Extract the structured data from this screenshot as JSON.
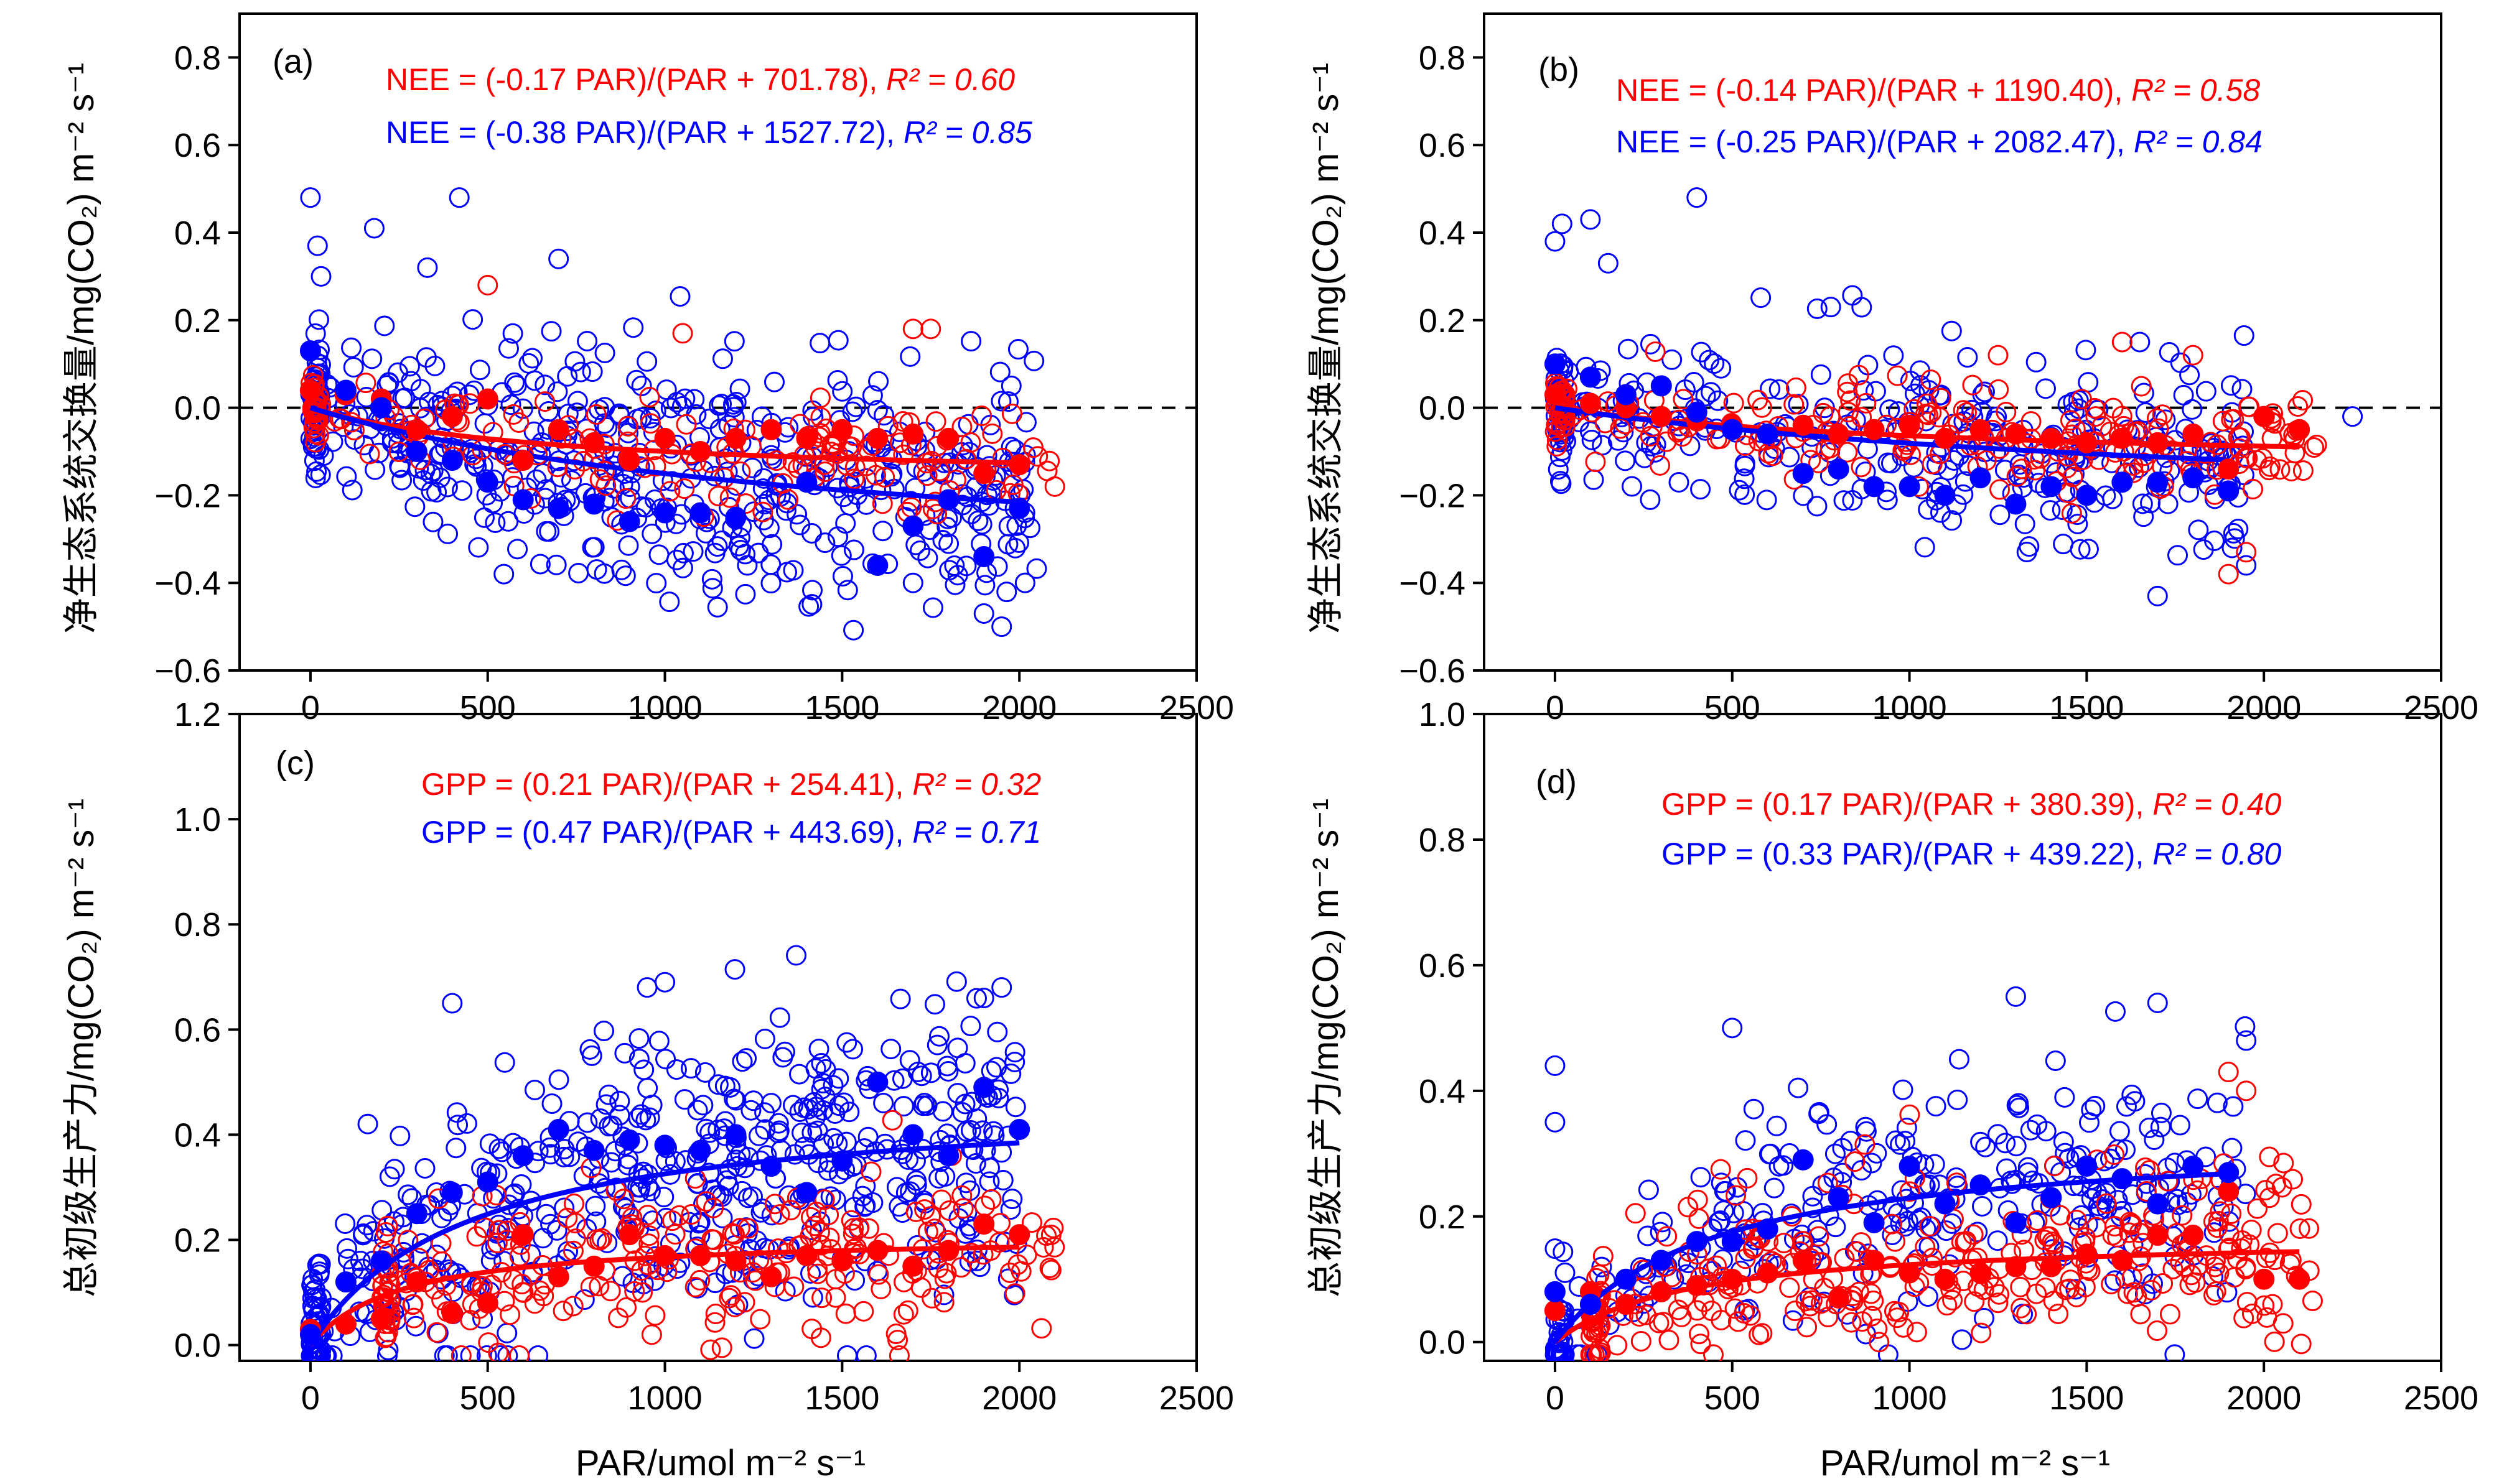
{
  "colors": {
    "red": "#ff0000",
    "blue": "#0000ff",
    "axis": "#000000"
  },
  "xlabel": "PAR/umol m⁻² s⁻¹",
  "chart_data": [
    {
      "type": "scatter",
      "panel": "(a)",
      "ylabel": "净生态系统交换量/mg(CO₂) m⁻² s⁻¹",
      "xlim": [
        -200,
        2500
      ],
      "ylim": [
        -0.6,
        0.9
      ],
      "xticks": [
        0,
        500,
        1000,
        1500,
        2000,
        2500
      ],
      "yticks": [
        -0.6,
        -0.4,
        -0.2,
        0.0,
        0.2,
        0.4,
        0.6,
        0.8
      ],
      "ytick_labels": [
        "−0.6",
        "−0.4",
        "−0.2",
        "0.0",
        "0.2",
        "0.4",
        "0.6",
        "0.8"
      ],
      "zero_line": true,
      "equations": [
        {
          "color": "red",
          "text": "NEE = (-0.17 PAR)/(PAR + 701.78), ",
          "r2": "R² = 0.60"
        },
        {
          "color": "blue",
          "text": "NEE = (-0.38 PAR)/(PAR + 1527.72), ",
          "r2": "R² = 0.85"
        }
      ],
      "fits": [
        {
          "color": "red",
          "a": -0.17,
          "b": 701.78,
          "c": 0.0,
          "xmax": 2000
        },
        {
          "color": "blue",
          "a": -0.38,
          "b": 1527.72,
          "c": 0.0,
          "xmax": 2000
        }
      ],
      "means": {
        "red": [
          [
            0,
            0.04
          ],
          [
            100,
            0.03
          ],
          [
            200,
            0.02
          ],
          [
            300,
            -0.05
          ],
          [
            400,
            -0.02
          ],
          [
            500,
            0.02
          ],
          [
            600,
            -0.12
          ],
          [
            700,
            -0.05
          ],
          [
            800,
            -0.08
          ],
          [
            900,
            -0.12
          ],
          [
            1000,
            -0.07
          ],
          [
            1100,
            -0.1
          ],
          [
            1200,
            -0.07
          ],
          [
            1300,
            -0.05
          ],
          [
            1400,
            -0.07
          ],
          [
            1500,
            -0.05
          ],
          [
            1600,
            -0.07
          ],
          [
            1700,
            -0.06
          ],
          [
            1800,
            -0.07
          ],
          [
            1900,
            -0.15
          ],
          [
            2000,
            -0.13
          ]
        ],
        "blue": [
          [
            0,
            0.13
          ],
          [
            100,
            0.04
          ],
          [
            200,
            0.0
          ],
          [
            300,
            -0.1
          ],
          [
            400,
            -0.12
          ],
          [
            500,
            -0.17
          ],
          [
            600,
            -0.21
          ],
          [
            700,
            -0.23
          ],
          [
            800,
            -0.22
          ],
          [
            900,
            -0.26
          ],
          [
            1000,
            -0.24
          ],
          [
            1100,
            -0.24
          ],
          [
            1200,
            -0.25
          ],
          [
            1400,
            -0.17
          ],
          [
            1600,
            -0.36
          ],
          [
            1700,
            -0.27
          ],
          [
            1800,
            -0.21
          ],
          [
            1900,
            -0.34
          ],
          [
            2000,
            -0.23
          ]
        ]
      },
      "scatter": {
        "blue": {
          "xrange": [
            0,
            2050
          ],
          "spread": 0.14,
          "n": 520,
          "extra": [
            [
              0,
              0.48
            ],
            [
              20,
              0.37
            ],
            [
              30,
              0.3
            ],
            [
              180,
              0.41
            ],
            [
              330,
              0.32
            ],
            [
              420,
              0.48
            ],
            [
              700,
              0.34
            ],
            [
              1700,
              -0.4
            ],
            [
              1900,
              -0.47
            ],
            [
              1950,
              -0.5
            ]
          ]
        },
        "red": {
          "xrange": [
            0,
            2100
          ],
          "spread": 0.06,
          "n": 180,
          "extra": [
            [
              500,
              0.28
            ],
            [
              1050,
              0.17
            ],
            [
              1700,
              0.18
            ],
            [
              1750,
              0.18
            ],
            [
              2100,
              -0.18
            ]
          ]
        }
      }
    },
    {
      "type": "scatter",
      "panel": "(b)",
      "ylabel": "净生态系统交换量/mg(CO₂) m⁻² s⁻¹",
      "xlim": [
        -200,
        2500
      ],
      "ylim": [
        -0.6,
        0.9
      ],
      "xticks": [
        0,
        500,
        1000,
        1500,
        2000,
        2500
      ],
      "yticks": [
        -0.6,
        -0.4,
        -0.2,
        0.0,
        0.2,
        0.4,
        0.6,
        0.8
      ],
      "ytick_labels": [
        "−0.6",
        "−0.4",
        "−0.2",
        "0.0",
        "0.2",
        "0.4",
        "0.6",
        "0.8"
      ],
      "zero_line": true,
      "equations": [
        {
          "color": "red",
          "text": "NEE = (-0.14 PAR)/(PAR + 1190.40), ",
          "r2": "R² = 0.58"
        },
        {
          "color": "blue",
          "text": "NEE = (-0.25 PAR)/(PAR + 2082.47), ",
          "r2": "R² = 0.84"
        }
      ],
      "fits": [
        {
          "color": "red",
          "a": -0.14,
          "b": 1190.4,
          "c": 0.0,
          "xmax": 2100
        },
        {
          "color": "blue",
          "a": -0.25,
          "b": 2082.47,
          "c": 0.0,
          "xmax": 1900
        }
      ],
      "means": {
        "red": [
          [
            0,
            0.03
          ],
          [
            100,
            0.01
          ],
          [
            200,
            0.0
          ],
          [
            300,
            -0.02
          ],
          [
            400,
            -0.03
          ],
          [
            500,
            -0.04
          ],
          [
            600,
            -0.06
          ],
          [
            700,
            -0.04
          ],
          [
            800,
            -0.06
          ],
          [
            900,
            -0.05
          ],
          [
            1000,
            -0.04
          ],
          [
            1100,
            -0.07
          ],
          [
            1200,
            -0.05
          ],
          [
            1300,
            -0.06
          ],
          [
            1400,
            -0.07
          ],
          [
            1500,
            -0.08
          ],
          [
            1600,
            -0.07
          ],
          [
            1700,
            -0.08
          ],
          [
            1800,
            -0.06
          ],
          [
            1900,
            -0.14
          ],
          [
            2000,
            -0.02
          ],
          [
            2100,
            -0.05
          ]
        ],
        "blue": [
          [
            0,
            0.1
          ],
          [
            100,
            0.07
          ],
          [
            200,
            0.03
          ],
          [
            300,
            0.05
          ],
          [
            400,
            -0.01
          ],
          [
            500,
            -0.05
          ],
          [
            600,
            -0.06
          ],
          [
            700,
            -0.15
          ],
          [
            800,
            -0.14
          ],
          [
            900,
            -0.18
          ],
          [
            1000,
            -0.18
          ],
          [
            1100,
            -0.2
          ],
          [
            1200,
            -0.16
          ],
          [
            1300,
            -0.22
          ],
          [
            1400,
            -0.18
          ],
          [
            1500,
            -0.2
          ],
          [
            1600,
            -0.17
          ],
          [
            1700,
            -0.17
          ],
          [
            1800,
            -0.16
          ],
          [
            1900,
            -0.19
          ]
        ]
      },
      "scatter": {
        "blue": {
          "xrange": [
            0,
            1950
          ],
          "spread": 0.11,
          "n": 330,
          "extra": [
            [
              0,
              0.38
            ],
            [
              20,
              0.42
            ],
            [
              100,
              0.43
            ],
            [
              400,
              0.48
            ],
            [
              150,
              0.33
            ],
            [
              1650,
              0.15
            ],
            [
              1700,
              -0.43
            ],
            [
              1950,
              -0.36
            ],
            [
              2250,
              -0.02
            ]
          ]
        },
        "red": {
          "xrange": [
            0,
            2150
          ],
          "spread": 0.06,
          "n": 230,
          "extra": [
            [
              1250,
              0.12
            ],
            [
              1600,
              0.15
            ],
            [
              1800,
              0.12
            ],
            [
              1900,
              -0.38
            ],
            [
              1950,
              -0.33
            ]
          ]
        }
      }
    },
    {
      "type": "scatter",
      "panel": "(c)",
      "ylabel": "总初级生产力/mg(CO₂) m⁻² s⁻¹",
      "xlim": [
        -200,
        2500
      ],
      "ylim": [
        -0.03,
        1.2
      ],
      "xticks": [
        0,
        500,
        1000,
        1500,
        2000,
        2500
      ],
      "yticks": [
        0.0,
        0.2,
        0.4,
        0.6,
        0.8,
        1.0,
        1.2
      ],
      "ytick_labels": [
        "0.0",
        "0.2",
        "0.4",
        "0.6",
        "0.8",
        "1.0",
        "1.2"
      ],
      "zero_line": false,
      "equations": [
        {
          "color": "red",
          "text": "GPP = (0.21 PAR)/(PAR + 254.41), ",
          "r2": "R² = 0.32"
        },
        {
          "color": "blue",
          "text": "GPP = (0.47 PAR)/(PAR + 443.69), ",
          "r2": "R² = 0.71"
        }
      ],
      "fits": [
        {
          "color": "red",
          "a": 0.21,
          "b": 254.41,
          "c": 0.0,
          "xmax": 2000
        },
        {
          "color": "blue",
          "a": 0.47,
          "b": 443.69,
          "c": 0.0,
          "xmax": 2000
        }
      ],
      "means": {
        "red": [
          [
            0,
            0.03
          ],
          [
            100,
            0.04
          ],
          [
            200,
            0.05
          ],
          [
            300,
            0.12
          ],
          [
            400,
            0.06
          ],
          [
            500,
            0.08
          ],
          [
            600,
            0.21
          ],
          [
            700,
            0.13
          ],
          [
            800,
            0.15
          ],
          [
            900,
            0.21
          ],
          [
            1000,
            0.17
          ],
          [
            1100,
            0.17
          ],
          [
            1200,
            0.16
          ],
          [
            1300,
            0.13
          ],
          [
            1400,
            0.17
          ],
          [
            1500,
            0.16
          ],
          [
            1600,
            0.18
          ],
          [
            1700,
            0.15
          ],
          [
            1800,
            0.18
          ],
          [
            1900,
            0.23
          ],
          [
            2000,
            0.21
          ]
        ],
        "blue": [
          [
            0,
            0.02
          ],
          [
            100,
            0.12
          ],
          [
            200,
            0.16
          ],
          [
            300,
            0.25
          ],
          [
            400,
            0.29
          ],
          [
            500,
            0.31
          ],
          [
            600,
            0.36
          ],
          [
            700,
            0.41
          ],
          [
            800,
            0.37
          ],
          [
            900,
            0.39
          ],
          [
            1000,
            0.38
          ],
          [
            1100,
            0.37
          ],
          [
            1200,
            0.4
          ],
          [
            1300,
            0.34
          ],
          [
            1400,
            0.29
          ],
          [
            1500,
            0.35
          ],
          [
            1600,
            0.5
          ],
          [
            1700,
            0.4
          ],
          [
            1800,
            0.36
          ],
          [
            1900,
            0.49
          ],
          [
            2000,
            0.41
          ]
        ]
      },
      "scatter": {
        "blue": {
          "xrange": [
            0,
            2000
          ],
          "spread": 0.14,
          "n": 560,
          "extra": [
            [
              950,
              0.68
            ],
            [
              1000,
              0.69
            ],
            [
              1950,
              0.68
            ],
            [
              1900,
              0.66
            ],
            [
              400,
              0.65
            ]
          ]
        },
        "red": {
          "xrange": [
            200,
            2100
          ],
          "spread": 0.08,
          "n": 260,
          "extra": []
        }
      }
    },
    {
      "type": "scatter",
      "panel": "(d)",
      "ylabel": "总初级生产力/mg(CO₂) m⁻² s⁻¹",
      "xlim": [
        -200,
        2500
      ],
      "ylim": [
        -0.03,
        1.0
      ],
      "xticks": [
        0,
        500,
        1000,
        1500,
        2000,
        2500
      ],
      "yticks": [
        0.0,
        0.2,
        0.4,
        0.6,
        0.8,
        1.0
      ],
      "ytick_labels": [
        "0.0",
        "0.2",
        "0.4",
        "0.6",
        "0.8",
        "1.0"
      ],
      "zero_line": false,
      "equations": [
        {
          "color": "red",
          "text": "GPP = (0.17 PAR)/(PAR + 380.39), ",
          "r2": "R² = 0.40"
        },
        {
          "color": "blue",
          "text": "GPP = (0.33 PAR)/(PAR + 439.22), ",
          "r2": "R² = 0.80"
        }
      ],
      "fits": [
        {
          "color": "red",
          "a": 0.17,
          "b": 380.39,
          "c": 0.0,
          "xmax": 2100
        },
        {
          "color": "blue",
          "a": 0.33,
          "b": 439.22,
          "c": 0.0,
          "xmax": 1900
        }
      ],
      "means": {
        "red": [
          [
            0,
            0.05
          ],
          [
            100,
            0.08
          ],
          [
            200,
            0.06
          ],
          [
            300,
            0.08
          ],
          [
            400,
            0.09
          ],
          [
            500,
            0.1
          ],
          [
            600,
            0.11
          ],
          [
            700,
            0.13
          ],
          [
            800,
            0.07
          ],
          [
            900,
            0.13
          ],
          [
            1000,
            0.11
          ],
          [
            1100,
            0.1
          ],
          [
            1200,
            0.11
          ],
          [
            1300,
            0.12
          ],
          [
            1400,
            0.12
          ],
          [
            1500,
            0.14
          ],
          [
            1600,
            0.13
          ],
          [
            1700,
            0.17
          ],
          [
            1800,
            0.17
          ],
          [
            1900,
            0.24
          ],
          [
            2000,
            0.1
          ],
          [
            2100,
            0.1
          ]
        ],
        "blue": [
          [
            0,
            0.08
          ],
          [
            100,
            0.06
          ],
          [
            200,
            0.1
          ],
          [
            300,
            0.13
          ],
          [
            400,
            0.16
          ],
          [
            500,
            0.16
          ],
          [
            600,
            0.18
          ],
          [
            700,
            0.29
          ],
          [
            800,
            0.23
          ],
          [
            900,
            0.19
          ],
          [
            1000,
            0.28
          ],
          [
            1100,
            0.22
          ],
          [
            1200,
            0.25
          ],
          [
            1300,
            0.19
          ],
          [
            1400,
            0.23
          ],
          [
            1500,
            0.28
          ],
          [
            1600,
            0.26
          ],
          [
            1700,
            0.22
          ],
          [
            1800,
            0.28
          ],
          [
            1900,
            0.27
          ]
        ]
      },
      "scatter": {
        "blue": {
          "xrange": [
            0,
            1950
          ],
          "spread": 0.1,
          "n": 300,
          "extra": [
            [
              0,
              0.44
            ],
            [
              0,
              0.35
            ],
            [
              500,
              0.5
            ],
            [
              1300,
              0.55
            ],
            [
              1700,
              0.54
            ],
            [
              1950,
              0.48
            ]
          ]
        },
        "red": {
          "xrange": [
            100,
            2150
          ],
          "spread": 0.07,
          "n": 330,
          "extra": [
            [
              1900,
              0.43
            ],
            [
              1950,
              0.4
            ]
          ]
        }
      }
    }
  ]
}
